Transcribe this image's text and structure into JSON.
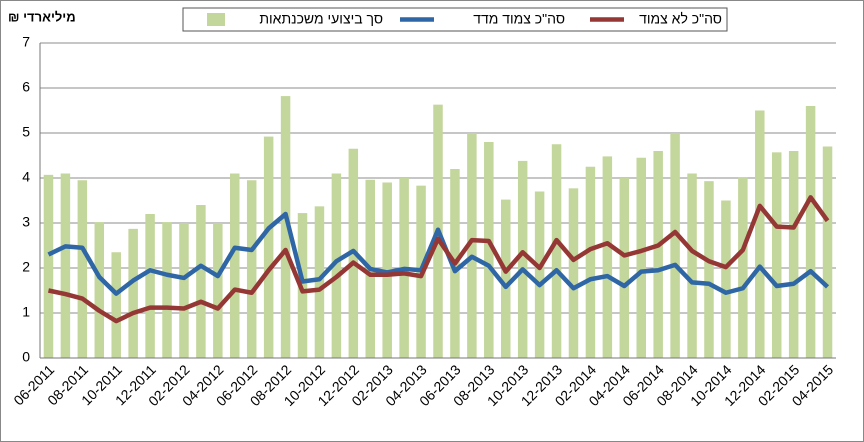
{
  "chart_data": {
    "type": "bar_line",
    "y_unit_label": "מיליארדי ₪",
    "categories": [
      "06-2011",
      null,
      "08-2011",
      null,
      "10-2011",
      null,
      "12-2011",
      null,
      "02-2012",
      null,
      "04-2012",
      null,
      "06-2012",
      null,
      "08-2012",
      null,
      "10-2012",
      null,
      "12-2012",
      null,
      "02-2013",
      null,
      "04-2013",
      null,
      "06-2013",
      null,
      "08-2013",
      null,
      "10-2013",
      null,
      "12-2013",
      null,
      "02-2014",
      null,
      "04-2014",
      null,
      "06-2014",
      null,
      "08-2014",
      null,
      "10-2014",
      null,
      "12-2014",
      null,
      "02-2015",
      null,
      "04-2015"
    ],
    "series": [
      {
        "name": "סך ביצועי  משכנתאות",
        "kind": "bar",
        "color": "#c3d69b",
        "values": [
          4.07,
          4.1,
          3.95,
          3.02,
          2.35,
          2.87,
          3.2,
          3.02,
          3.0,
          3.4,
          3.0,
          4.1,
          3.95,
          4.92,
          5.82,
          3.22,
          3.37,
          4.1,
          4.65,
          3.96,
          3.9,
          4.0,
          3.83,
          5.63,
          4.2,
          5.0,
          4.8,
          3.52,
          4.38,
          3.7,
          4.75,
          3.77,
          4.25,
          4.48,
          4.0,
          4.45,
          4.6,
          5.0,
          4.1,
          3.93,
          3.5,
          4.02,
          5.5,
          4.57,
          4.6,
          5.6,
          4.7
        ]
      },
      {
        "name": "סה\"כ צמוד מדד",
        "kind": "line",
        "color": "#2f66a6",
        "values": [
          2.3,
          2.48,
          2.45,
          1.8,
          1.43,
          1.72,
          1.95,
          1.85,
          1.78,
          2.05,
          1.82,
          2.45,
          2.4,
          2.88,
          3.2,
          1.7,
          1.75,
          2.15,
          2.38,
          1.98,
          1.9,
          1.98,
          1.95,
          2.85,
          1.93,
          2.25,
          2.05,
          1.58,
          1.97,
          1.62,
          1.95,
          1.55,
          1.75,
          1.82,
          1.6,
          1.92,
          1.95,
          2.07,
          1.68,
          1.65,
          1.45,
          1.55,
          2.03,
          1.6,
          1.65,
          1.93,
          1.58
        ]
      },
      {
        "name": "סה\"כ לא צמוד",
        "kind": "line",
        "color": "#953735",
        "values": [
          1.5,
          1.42,
          1.32,
          1.05,
          0.82,
          1.0,
          1.12,
          1.12,
          1.1,
          1.25,
          1.1,
          1.52,
          1.45,
          1.95,
          2.4,
          1.48,
          1.52,
          1.8,
          2.12,
          1.85,
          1.85,
          1.88,
          1.82,
          2.65,
          2.1,
          2.62,
          2.6,
          1.92,
          2.35,
          2.0,
          2.62,
          2.18,
          2.42,
          2.55,
          2.28,
          2.38,
          2.5,
          2.8,
          2.38,
          2.15,
          2.02,
          2.4,
          3.38,
          2.92,
          2.9,
          3.57,
          3.05
        ]
      }
    ],
    "ylim": [
      0,
      7
    ],
    "yticks": [
      0,
      1,
      2,
      3,
      4,
      5,
      6,
      7
    ],
    "grid": true
  }
}
